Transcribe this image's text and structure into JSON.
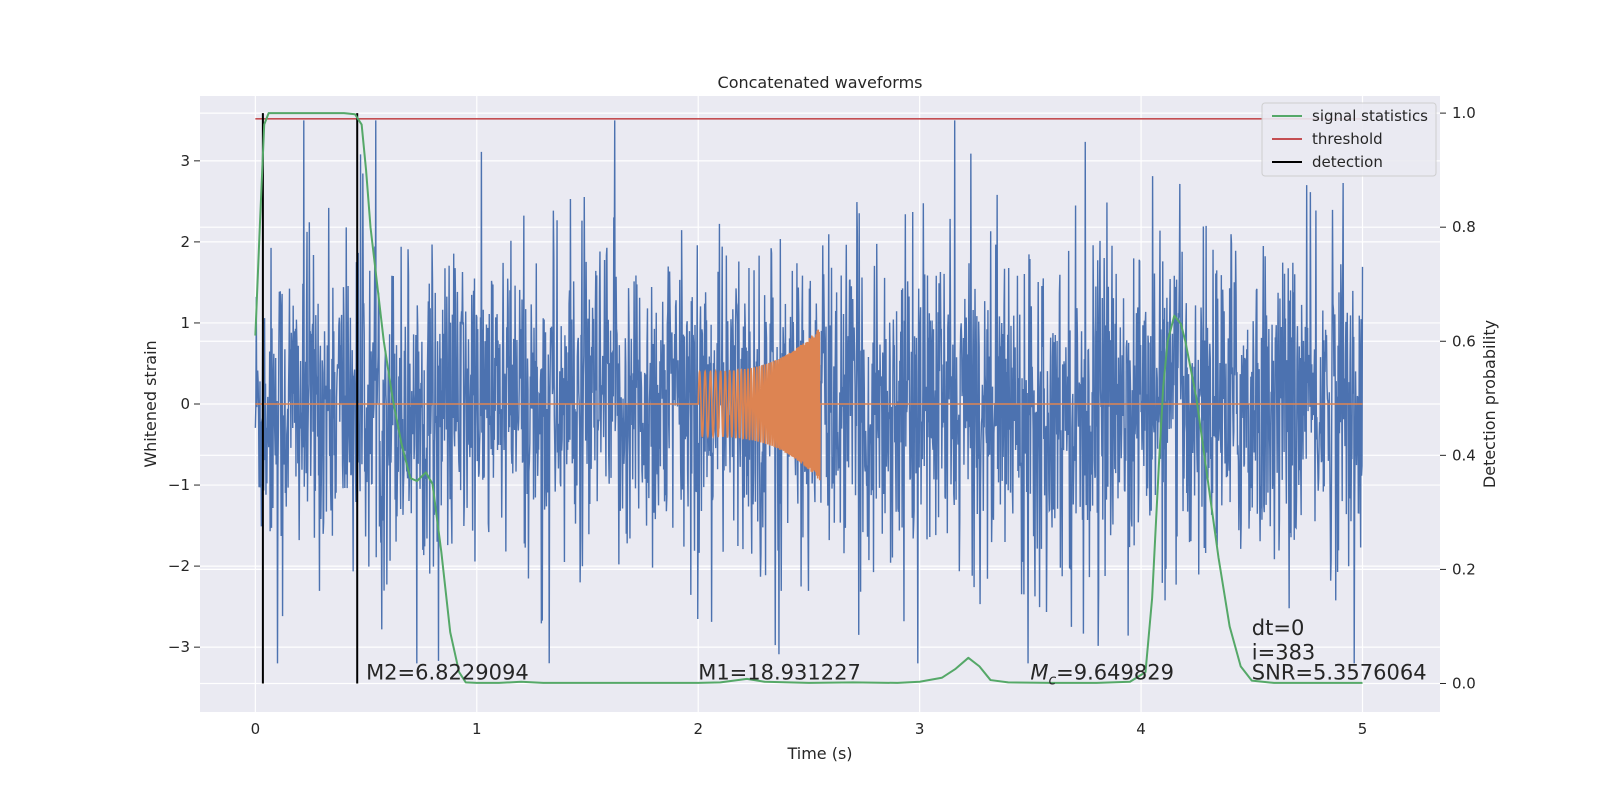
{
  "chart_data": {
    "type": "line",
    "title": "Concatenated waveforms",
    "xlabel": "Time (s)",
    "ylabel": "Whitened strain",
    "y2label": "Detection probability",
    "xlim": [
      -0.25,
      5.35
    ],
    "ylim": [
      -3.8,
      3.8
    ],
    "y2lim": [
      -0.05,
      1.03
    ],
    "x_ticks": [
      0,
      1,
      2,
      3,
      4,
      5
    ],
    "y_ticks": [
      -3,
      -2,
      -1,
      0,
      1,
      2,
      3
    ],
    "y2_ticks": [
      0.0,
      0.2,
      0.4,
      0.6,
      0.8,
      1.0
    ],
    "grid": true,
    "legend_position": "top-right",
    "colors": {
      "noise": "#4c72b0",
      "template": "#dd8452",
      "signal_statistics": "#55a868",
      "threshold": "#c44e52",
      "detection": "#000000",
      "background": "#eaeaf2"
    },
    "series": [
      {
        "name": "signal statistics",
        "axis": "right",
        "x": [
          0.0,
          0.02,
          0.04,
          0.06,
          0.1,
          0.2,
          0.3,
          0.4,
          0.45,
          0.48,
          0.5,
          0.52,
          0.55,
          0.58,
          0.62,
          0.66,
          0.7,
          0.73,
          0.77,
          0.8,
          0.84,
          0.88,
          0.92,
          0.95,
          1.0,
          1.1,
          1.2,
          1.3,
          1.5,
          1.8,
          2.0,
          2.1,
          2.22,
          2.3,
          2.5,
          2.7,
          2.9,
          3.0,
          3.1,
          3.16,
          3.22,
          3.27,
          3.32,
          3.4,
          3.6,
          3.8,
          3.95,
          4.02,
          4.05,
          4.08,
          4.1,
          4.12,
          4.15,
          4.18,
          4.2,
          4.25,
          4.3,
          4.35,
          4.4,
          4.45,
          4.5,
          4.6,
          4.8,
          5.0
        ],
        "values": [
          0.61,
          0.8,
          0.98,
          1.0,
          1.0,
          1.0,
          1.0,
          1.0,
          0.998,
          0.98,
          0.9,
          0.8,
          0.7,
          0.6,
          0.5,
          0.42,
          0.36,
          0.355,
          0.37,
          0.35,
          0.23,
          0.09,
          0.02,
          0.002,
          0.001,
          0.001,
          0.003,
          0.001,
          0.001,
          0.001,
          0.001,
          0.002,
          0.008,
          0.003,
          0.001,
          0.002,
          0.001,
          0.003,
          0.01,
          0.025,
          0.045,
          0.03,
          0.006,
          0.002,
          0.001,
          0.001,
          0.003,
          0.02,
          0.15,
          0.38,
          0.52,
          0.6,
          0.645,
          0.63,
          0.6,
          0.5,
          0.36,
          0.22,
          0.1,
          0.03,
          0.005,
          0.001,
          0.001,
          0.001
        ]
      },
      {
        "name": "threshold",
        "axis": "right",
        "x": [
          0.0,
          5.0
        ],
        "values": [
          0.99,
          0.99
        ]
      },
      {
        "name": "detection",
        "axis": "right",
        "x": [
          0.034,
          0.46
        ],
        "values": [
          1.0,
          1.0
        ]
      },
      {
        "name": "",
        "axis": "left",
        "kind": "noise",
        "x_range": [
          0.0,
          5.0
        ],
        "amplitude": 3.2
      },
      {
        "name": "",
        "axis": "left",
        "kind": "chirp",
        "x_range": [
          2.0,
          2.55
        ],
        "amplitude_start": 0.4,
        "amplitude_end": 0.95
      }
    ],
    "annotations": [
      {
        "text": "M2=6.8229094",
        "x": 0.5,
        "y": -3.4
      },
      {
        "text": "M1=18.931227",
        "x": 2.0,
        "y": -3.4
      },
      {
        "text_main": "M",
        "text_sub": "c",
        "text_rest": "=9.649829",
        "x": 3.5,
        "y": -3.4
      },
      {
        "text": "dt=0",
        "x": 4.5,
        "y": -2.85
      },
      {
        "text": "i=383",
        "x": 4.5,
        "y": -3.15
      },
      {
        "text": "SNR=5.3576064",
        "x": 4.5,
        "y": -3.4
      }
    ]
  }
}
